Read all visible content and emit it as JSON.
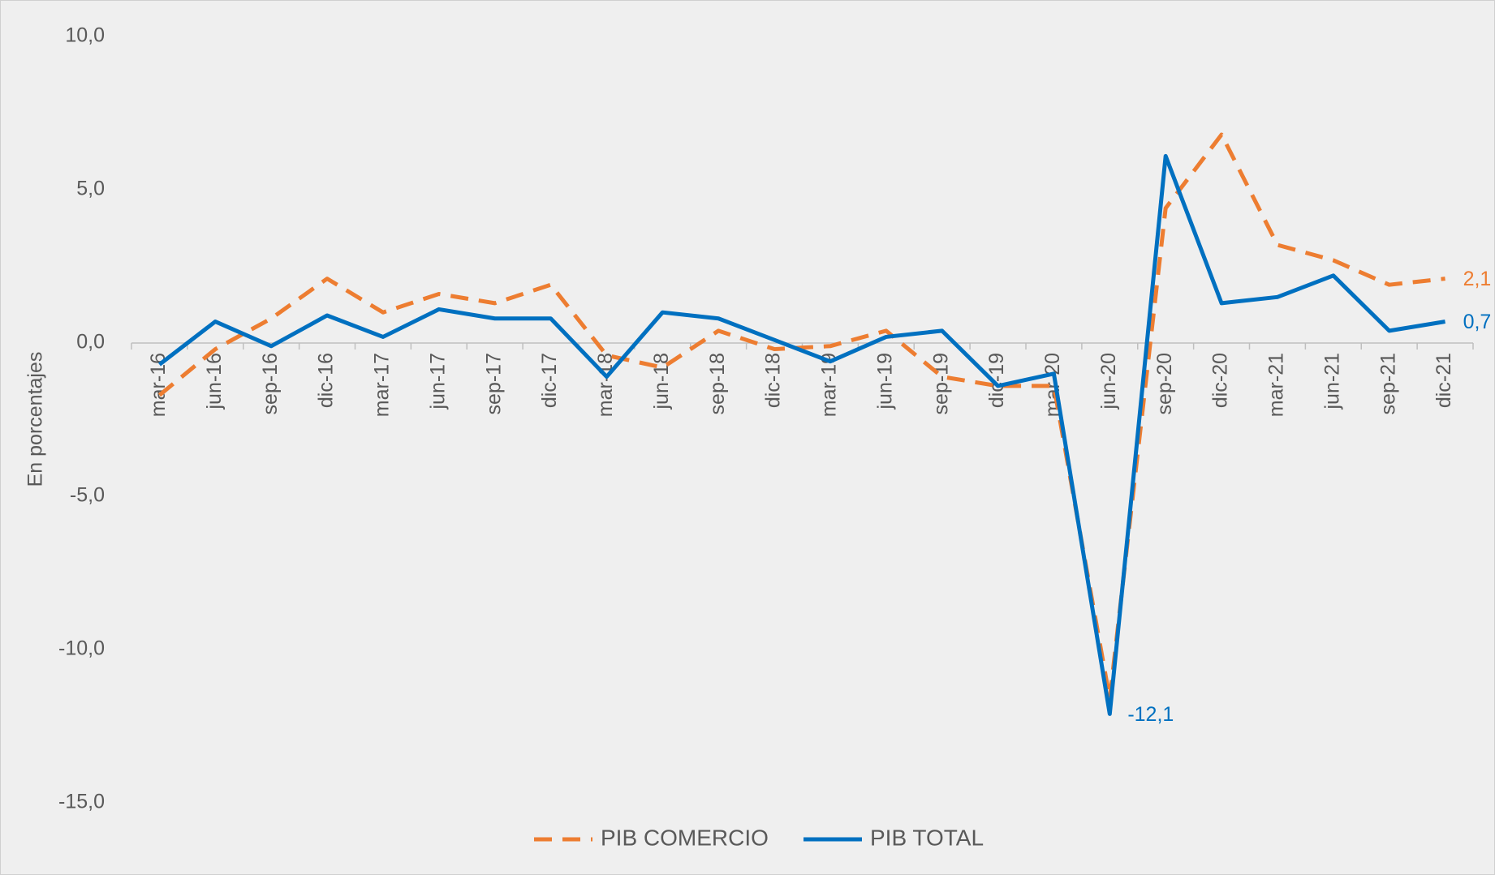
{
  "chart_data": {
    "type": "line",
    "y_label": "En porcentajes",
    "categories": [
      "mar-16",
      "jun-16",
      "sep-16",
      "dic-16",
      "mar-17",
      "jun-17",
      "sep-17",
      "dic-17",
      "mar-18",
      "jun-18",
      "sep-18",
      "dic-18",
      "mar-19",
      "jun-19",
      "sep-19",
      "dic-19",
      "mar-20",
      "jun-20",
      "sep-20",
      "dic-20",
      "mar-21",
      "jun-21",
      "sep-21",
      "dic-21"
    ],
    "series": [
      {
        "name": "PIB COMERCIO",
        "color": "#ED7D31",
        "dashed": true,
        "values": [
          -1.7,
          -0.2,
          0.8,
          2.1,
          1.0,
          1.6,
          1.3,
          1.9,
          -0.4,
          -0.8,
          0.4,
          -0.2,
          -0.1,
          0.4,
          -1.1,
          -1.4,
          -1.4,
          -11.6,
          4.4,
          6.8,
          3.2,
          2.7,
          1.9,
          2.1
        ],
        "value_labels": [
          null,
          null,
          null,
          null,
          null,
          null,
          null,
          null,
          null,
          null,
          null,
          null,
          null,
          null,
          null,
          null,
          null,
          null,
          null,
          null,
          null,
          null,
          null,
          "2,1"
        ]
      },
      {
        "name": "PIB TOTAL",
        "color": "#0070C0",
        "dashed": false,
        "values": [
          -0.7,
          0.7,
          -0.1,
          0.9,
          0.2,
          1.1,
          0.8,
          0.8,
          -1.1,
          1.0,
          0.8,
          0.1,
          -0.6,
          0.2,
          0.4,
          -1.4,
          -1.0,
          -12.1,
          6.1,
          1.3,
          1.5,
          2.2,
          0.4,
          0.7
        ],
        "value_labels": [
          null,
          null,
          null,
          null,
          null,
          null,
          null,
          null,
          null,
          null,
          null,
          null,
          null,
          null,
          null,
          null,
          null,
          "-12,1",
          null,
          null,
          null,
          null,
          null,
          "0,7"
        ]
      }
    ],
    "ylim": [
      -15,
      10
    ],
    "yticks": [
      {
        "value": 10,
        "label": "10,0"
      },
      {
        "value": 5,
        "label": "5,0"
      },
      {
        "value": 0,
        "label": "0,0"
      },
      {
        "value": -5,
        "label": "-5,0"
      },
      {
        "value": -10,
        "label": "-10,0"
      },
      {
        "value": -15,
        "label": "-15,0"
      }
    ],
    "grid": false,
    "legend": "bottom"
  }
}
